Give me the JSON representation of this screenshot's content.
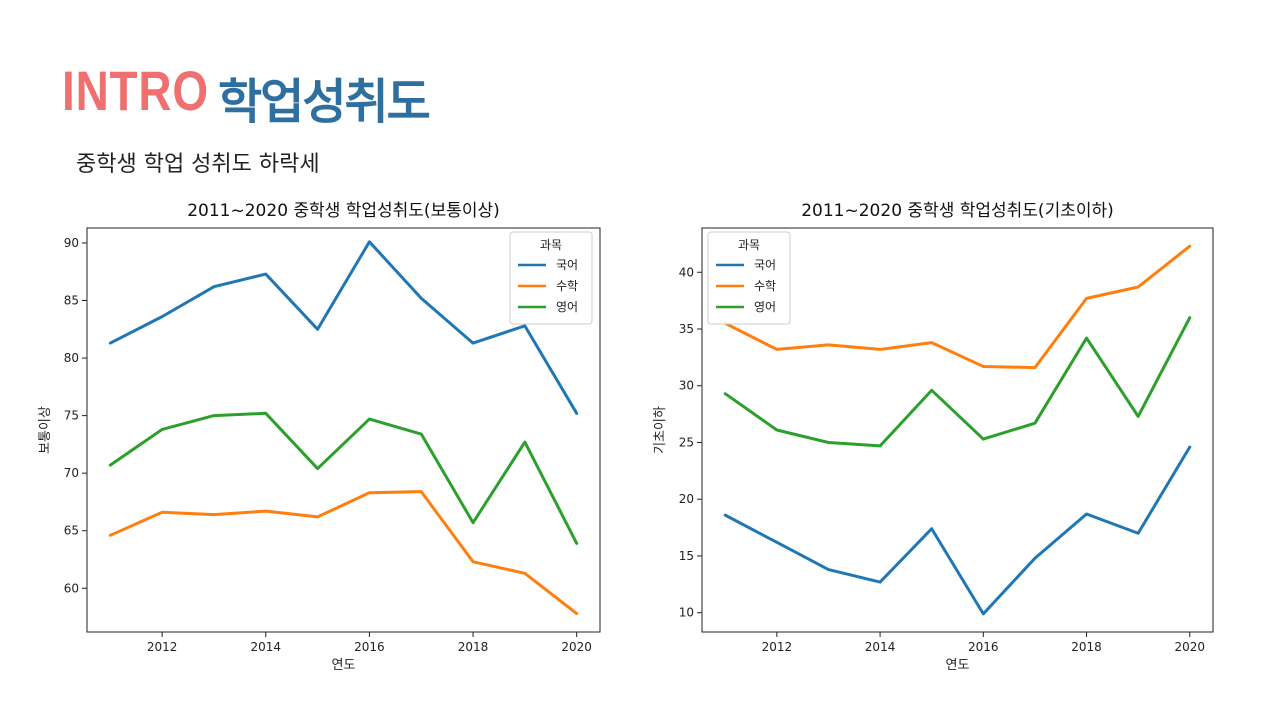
{
  "header": {
    "intro": "INTRO",
    "topic": "학업성취도"
  },
  "subtitle": "중학생 학업 성취도 하락세",
  "colors": {
    "국어": "#1f77b4",
    "수학": "#ff7f0e",
    "영어": "#2ca02c",
    "intro": "#F0706F",
    "topic": "#2F6FA0"
  },
  "chart_data": [
    {
      "type": "line",
      "title": "2011~2020 중학생 학업성취도(보통이상)",
      "xlabel": "연도",
      "ylabel": "보통이상",
      "legend_title": "과목",
      "legend_position": "top-right",
      "x": [
        2011,
        2012,
        2013,
        2014,
        2015,
        2016,
        2017,
        2018,
        2019,
        2020
      ],
      "xticks": [
        2012,
        2014,
        2016,
        2018,
        2020
      ],
      "yticks": [
        60,
        65,
        70,
        75,
        80,
        85,
        90
      ],
      "xlim": [
        2010.55,
        2020.45
      ],
      "ylim": [
        56.2,
        91.3
      ],
      "grid": false,
      "series": [
        {
          "name": "국어",
          "values": [
            81.3,
            83.6,
            86.2,
            87.3,
            82.5,
            90.1,
            85.2,
            81.3,
            82.8,
            75.2
          ]
        },
        {
          "name": "수학",
          "values": [
            64.6,
            66.6,
            66.4,
            66.7,
            66.2,
            68.3,
            68.4,
            62.3,
            61.3,
            57.8
          ]
        },
        {
          "name": "영어",
          "values": [
            70.7,
            73.8,
            75.0,
            75.2,
            70.4,
            74.7,
            73.4,
            65.7,
            72.7,
            63.9
          ]
        }
      ]
    },
    {
      "type": "line",
      "title": "2011~2020 중학생 학업성취도(기초이하)",
      "xlabel": "연도",
      "ylabel": "기초이하",
      "legend_title": "과목",
      "legend_position": "top-left",
      "x": [
        2011,
        2012,
        2013,
        2014,
        2015,
        2016,
        2017,
        2018,
        2019,
        2020
      ],
      "xticks": [
        2012,
        2014,
        2016,
        2018,
        2020
      ],
      "yticks": [
        10,
        15,
        20,
        25,
        30,
        35,
        40
      ],
      "xlim": [
        2010.55,
        2020.45
      ],
      "ylim": [
        8.3,
        43.9
      ],
      "grid": false,
      "series": [
        {
          "name": "국어",
          "values": [
            18.6,
            16.2,
            13.8,
            12.7,
            17.4,
            9.9,
            14.8,
            18.7,
            17.0,
            24.6
          ]
        },
        {
          "name": "수학",
          "values": [
            35.5,
            33.2,
            33.6,
            33.2,
            33.8,
            31.7,
            31.6,
            37.7,
            38.7,
            42.3
          ]
        },
        {
          "name": "영어",
          "values": [
            29.3,
            26.1,
            25.0,
            24.7,
            29.6,
            25.3,
            26.7,
            34.2,
            27.3,
            36.0
          ]
        }
      ]
    }
  ]
}
